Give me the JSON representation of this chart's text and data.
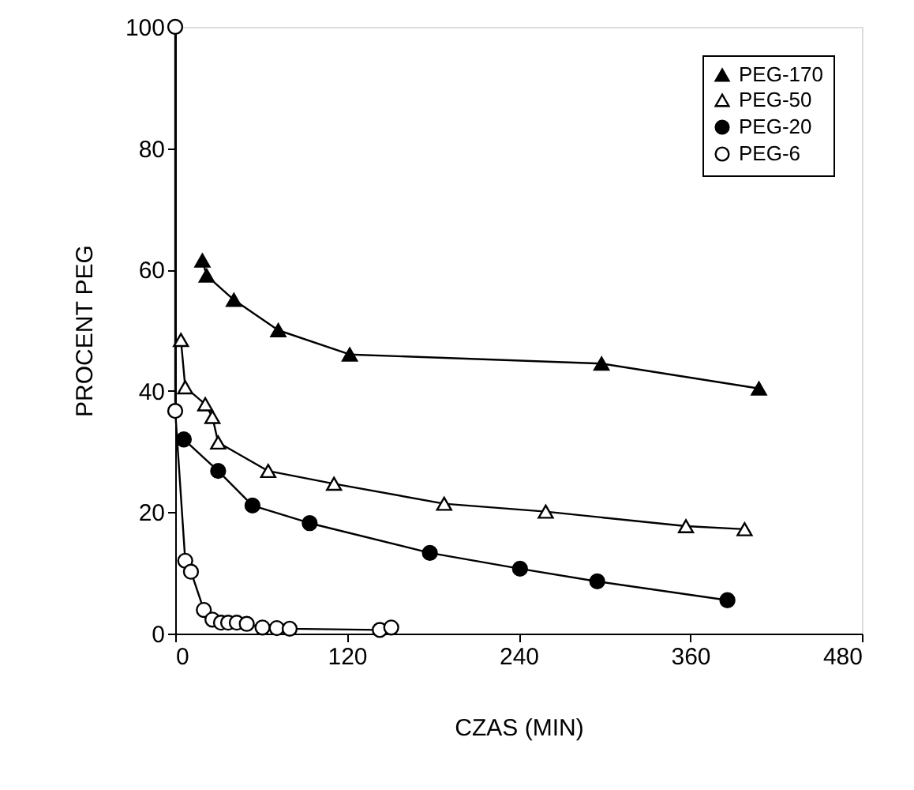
{
  "chart_data": {
    "type": "line",
    "xlabel": "CZAS (MIN)",
    "ylabel": "PROCENT PEG",
    "xlim": [
      0,
      480
    ],
    "xticks": [
      0,
      120,
      240,
      360,
      480
    ],
    "ylim": [
      0,
      100
    ],
    "yticks": [
      0,
      20,
      40,
      60,
      80,
      100
    ],
    "grid": false,
    "legend": "top right",
    "line_style": "solid",
    "series": [
      {
        "name": "PEG-170",
        "color": "#000000",
        "marker": "triangle",
        "x": [
          19,
          22,
          41,
          72,
          122,
          298,
          408
        ],
        "values": [
          61.5,
          59,
          55,
          50,
          46,
          44.5,
          40.4
        ]
      },
      {
        "name": "PEG-50",
        "color": "#ffffff",
        "marker": "triangle",
        "x": [
          4,
          7,
          21,
          26,
          30,
          65,
          111,
          188,
          259,
          357,
          398
        ],
        "values": [
          48.4,
          40.6,
          37.8,
          35.7,
          31.5,
          26.8,
          24.7,
          21.4,
          20.1,
          17.7,
          17.2
        ]
      },
      {
        "name": "PEG-20",
        "color": "#000000",
        "marker": "circle",
        "x": [
          6,
          30,
          54,
          94,
          178,
          241,
          295,
          386
        ],
        "values": [
          32,
          26.8,
          21.1,
          18.2,
          13.3,
          10.7,
          8.6,
          5.5
        ]
      },
      {
        "name": "PEG-6",
        "color": "#ffffff",
        "marker": "circle",
        "x": [
          0,
          0,
          7,
          11,
          20,
          26,
          32,
          37,
          43,
          50,
          61,
          71,
          80,
          143,
          151
        ],
        "values": [
          100,
          36.7,
          12,
          10.2,
          3.9,
          2.3,
          1.8,
          1.8,
          1.8,
          1.6,
          1,
          0.9,
          0.8,
          0.6,
          1
        ]
      }
    ]
  }
}
